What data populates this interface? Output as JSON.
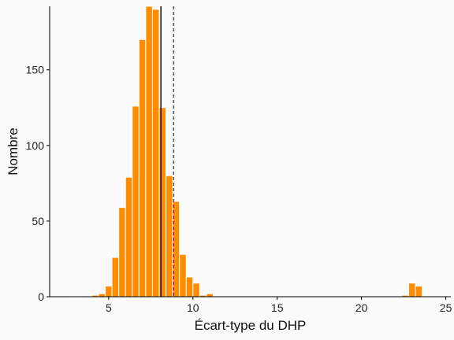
{
  "chart_data": {
    "type": "bar",
    "subtype": "histogram",
    "xlabel": "Écart-type du DHP",
    "ylabel": "Nombre",
    "xlim": [
      1.5,
      25.3
    ],
    "ylim": [
      0,
      192
    ],
    "x_ticks": [
      5,
      10,
      15,
      20,
      25
    ],
    "y_ticks": [
      0,
      50,
      100,
      150
    ],
    "grid": false,
    "bin_width": 0.4,
    "bins": [
      {
        "x0": 2.8,
        "count": 0.5
      },
      {
        "x0": 3.2,
        "count": 0
      },
      {
        "x0": 3.6,
        "count": 0
      },
      {
        "x0": 4.0,
        "count": 1
      },
      {
        "x0": 4.4,
        "count": 2
      },
      {
        "x0": 4.8,
        "count": 7
      },
      {
        "x0": 5.2,
        "count": 26
      },
      {
        "x0": 5.6,
        "count": 59
      },
      {
        "x0": 6.0,
        "count": 79
      },
      {
        "x0": 6.4,
        "count": 126
      },
      {
        "x0": 6.8,
        "count": 170
      },
      {
        "x0": 7.2,
        "count": 195
      },
      {
        "x0": 7.6,
        "count": 190
      },
      {
        "x0": 8.0,
        "count": 125
      },
      {
        "x0": 8.4,
        "count": 80
      },
      {
        "x0": 8.8,
        "count": 63
      },
      {
        "x0": 9.2,
        "count": 28
      },
      {
        "x0": 9.6,
        "count": 13
      },
      {
        "x0": 10.0,
        "count": 9
      },
      {
        "x0": 10.4,
        "count": 1
      },
      {
        "x0": 10.8,
        "count": 2
      },
      {
        "x0": 22.4,
        "count": 1
      },
      {
        "x0": 22.8,
        "count": 9
      },
      {
        "x0": 23.2,
        "count": 7
      }
    ],
    "reference_lines": [
      {
        "style": "solid",
        "x": 8.1
      },
      {
        "style": "dashed",
        "x": 8.85
      }
    ],
    "colors": {
      "bar_fill": "#ff8c00",
      "bar_edge": "#ffffff",
      "axis": "#000000",
      "background": "#fafafa"
    }
  }
}
